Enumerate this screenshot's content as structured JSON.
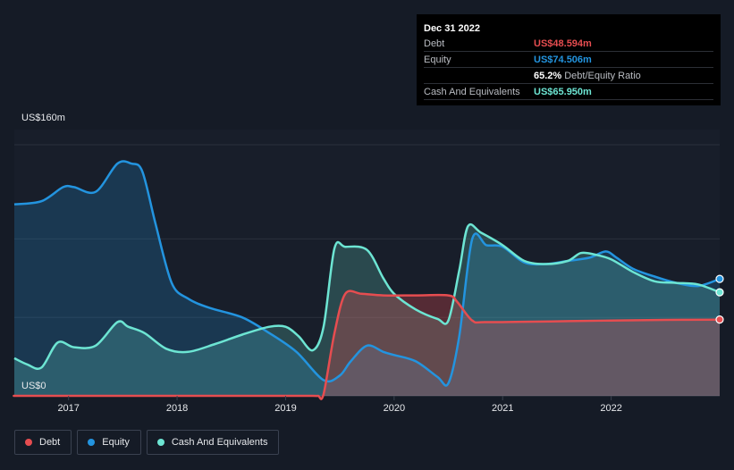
{
  "chart_data": {
    "type": "area",
    "ylabel_top": "US$160m",
    "ylabel_bottom": "US$0",
    "ylim": [
      0,
      160
    ],
    "xlim": [
      2016.5,
      2023.0
    ],
    "x_ticks": [
      {
        "value": 2017.0,
        "label": "2017"
      },
      {
        "value": 2018.0,
        "label": "2018"
      },
      {
        "value": 2019.0,
        "label": "2019"
      },
      {
        "value": 2020.0,
        "label": "2020"
      },
      {
        "value": 2021.0,
        "label": "2021"
      },
      {
        "value": 2022.0,
        "label": "2022"
      }
    ],
    "series": [
      {
        "name": "Equity",
        "color": "#2394df",
        "points": [
          [
            2016.5,
            122
          ],
          [
            2016.75,
            124
          ],
          [
            2016.95,
            133
          ],
          [
            2017.05,
            133
          ],
          [
            2017.25,
            130
          ],
          [
            2017.45,
            148
          ],
          [
            2017.58,
            148
          ],
          [
            2017.68,
            143
          ],
          [
            2017.8,
            110
          ],
          [
            2017.95,
            72
          ],
          [
            2018.1,
            62
          ],
          [
            2018.3,
            56
          ],
          [
            2018.6,
            50
          ],
          [
            2018.85,
            40
          ],
          [
            2019.1,
            28
          ],
          [
            2019.35,
            10
          ],
          [
            2019.5,
            13
          ],
          [
            2019.6,
            22
          ],
          [
            2019.75,
            32
          ],
          [
            2019.9,
            28
          ],
          [
            2020.0,
            26
          ],
          [
            2020.2,
            22
          ],
          [
            2020.4,
            12
          ],
          [
            2020.5,
            8
          ],
          [
            2020.6,
            38
          ],
          [
            2020.72,
            100
          ],
          [
            2020.85,
            96
          ],
          [
            2021.0,
            95
          ],
          [
            2021.2,
            85
          ],
          [
            2021.4,
            84
          ],
          [
            2021.6,
            86
          ],
          [
            2021.8,
            88
          ],
          [
            2021.95,
            92
          ],
          [
            2022.05,
            88
          ],
          [
            2022.2,
            81
          ],
          [
            2022.4,
            76
          ],
          [
            2022.6,
            72
          ],
          [
            2022.8,
            70
          ],
          [
            2023.0,
            74.5
          ]
        ]
      },
      {
        "name": "Cash And Equivalents",
        "color": "#6de5d3",
        "points": [
          [
            2016.5,
            24
          ],
          [
            2016.62,
            20
          ],
          [
            2016.75,
            18
          ],
          [
            2016.9,
            34
          ],
          [
            2017.05,
            31
          ],
          [
            2017.25,
            32
          ],
          [
            2017.45,
            47
          ],
          [
            2017.55,
            44
          ],
          [
            2017.7,
            40
          ],
          [
            2017.9,
            30
          ],
          [
            2018.1,
            28
          ],
          [
            2018.35,
            33
          ],
          [
            2018.6,
            39
          ],
          [
            2018.85,
            44
          ],
          [
            2019.0,
            44
          ],
          [
            2019.12,
            38
          ],
          [
            2019.25,
            29
          ],
          [
            2019.35,
            44
          ],
          [
            2019.45,
            94
          ],
          [
            2019.55,
            95
          ],
          [
            2019.75,
            93
          ],
          [
            2019.9,
            75
          ],
          [
            2020.0,
            65
          ],
          [
            2020.2,
            55
          ],
          [
            2020.4,
            49
          ],
          [
            2020.5,
            48
          ],
          [
            2020.6,
            80
          ],
          [
            2020.68,
            108
          ],
          [
            2020.8,
            104
          ],
          [
            2021.0,
            96
          ],
          [
            2021.2,
            86
          ],
          [
            2021.4,
            84
          ],
          [
            2021.6,
            86
          ],
          [
            2021.72,
            91
          ],
          [
            2021.85,
            90
          ],
          [
            2022.0,
            87
          ],
          [
            2022.2,
            79
          ],
          [
            2022.4,
            73
          ],
          [
            2022.6,
            72
          ],
          [
            2022.8,
            71
          ],
          [
            2023.0,
            66
          ]
        ]
      },
      {
        "name": "Debt",
        "color": "#e64d50",
        "points": [
          [
            2016.5,
            0
          ],
          [
            2016.6,
            0
          ],
          [
            2017.5,
            0
          ],
          [
            2018.5,
            0
          ],
          [
            2019.0,
            0
          ],
          [
            2019.25,
            0
          ],
          [
            2019.3,
            0
          ],
          [
            2019.35,
            1
          ],
          [
            2019.45,
            40
          ],
          [
            2019.55,
            65
          ],
          [
            2019.7,
            65
          ],
          [
            2019.9,
            64
          ],
          [
            2020.2,
            64
          ],
          [
            2020.5,
            64
          ],
          [
            2020.58,
            60
          ],
          [
            2020.72,
            48
          ],
          [
            2020.85,
            47
          ],
          [
            2021.5,
            47.5
          ],
          [
            2022.0,
            48
          ],
          [
            2022.5,
            48.4
          ],
          [
            2023.0,
            48.594
          ]
        ]
      }
    ]
  },
  "tooltip": {
    "date": "Dec 31 2022",
    "rows": [
      {
        "label": "Debt",
        "value": "US$48.594m",
        "color": "#e64d50"
      },
      {
        "label": "Equity",
        "value": "US$74.506m",
        "color": "#2394df"
      },
      {
        "label": "",
        "value": "65.2%",
        "suffix": "Debt/Equity Ratio",
        "color": "#ffffff"
      },
      {
        "label": "Cash And Equivalents",
        "value": "US$65.950m",
        "color": "#6de5d3"
      }
    ]
  },
  "legend": [
    {
      "label": "Debt",
      "color": "#e64d50"
    },
    {
      "label": "Equity",
      "color": "#2394df"
    },
    {
      "label": "Cash And Equivalents",
      "color": "#6de5d3"
    }
  ]
}
